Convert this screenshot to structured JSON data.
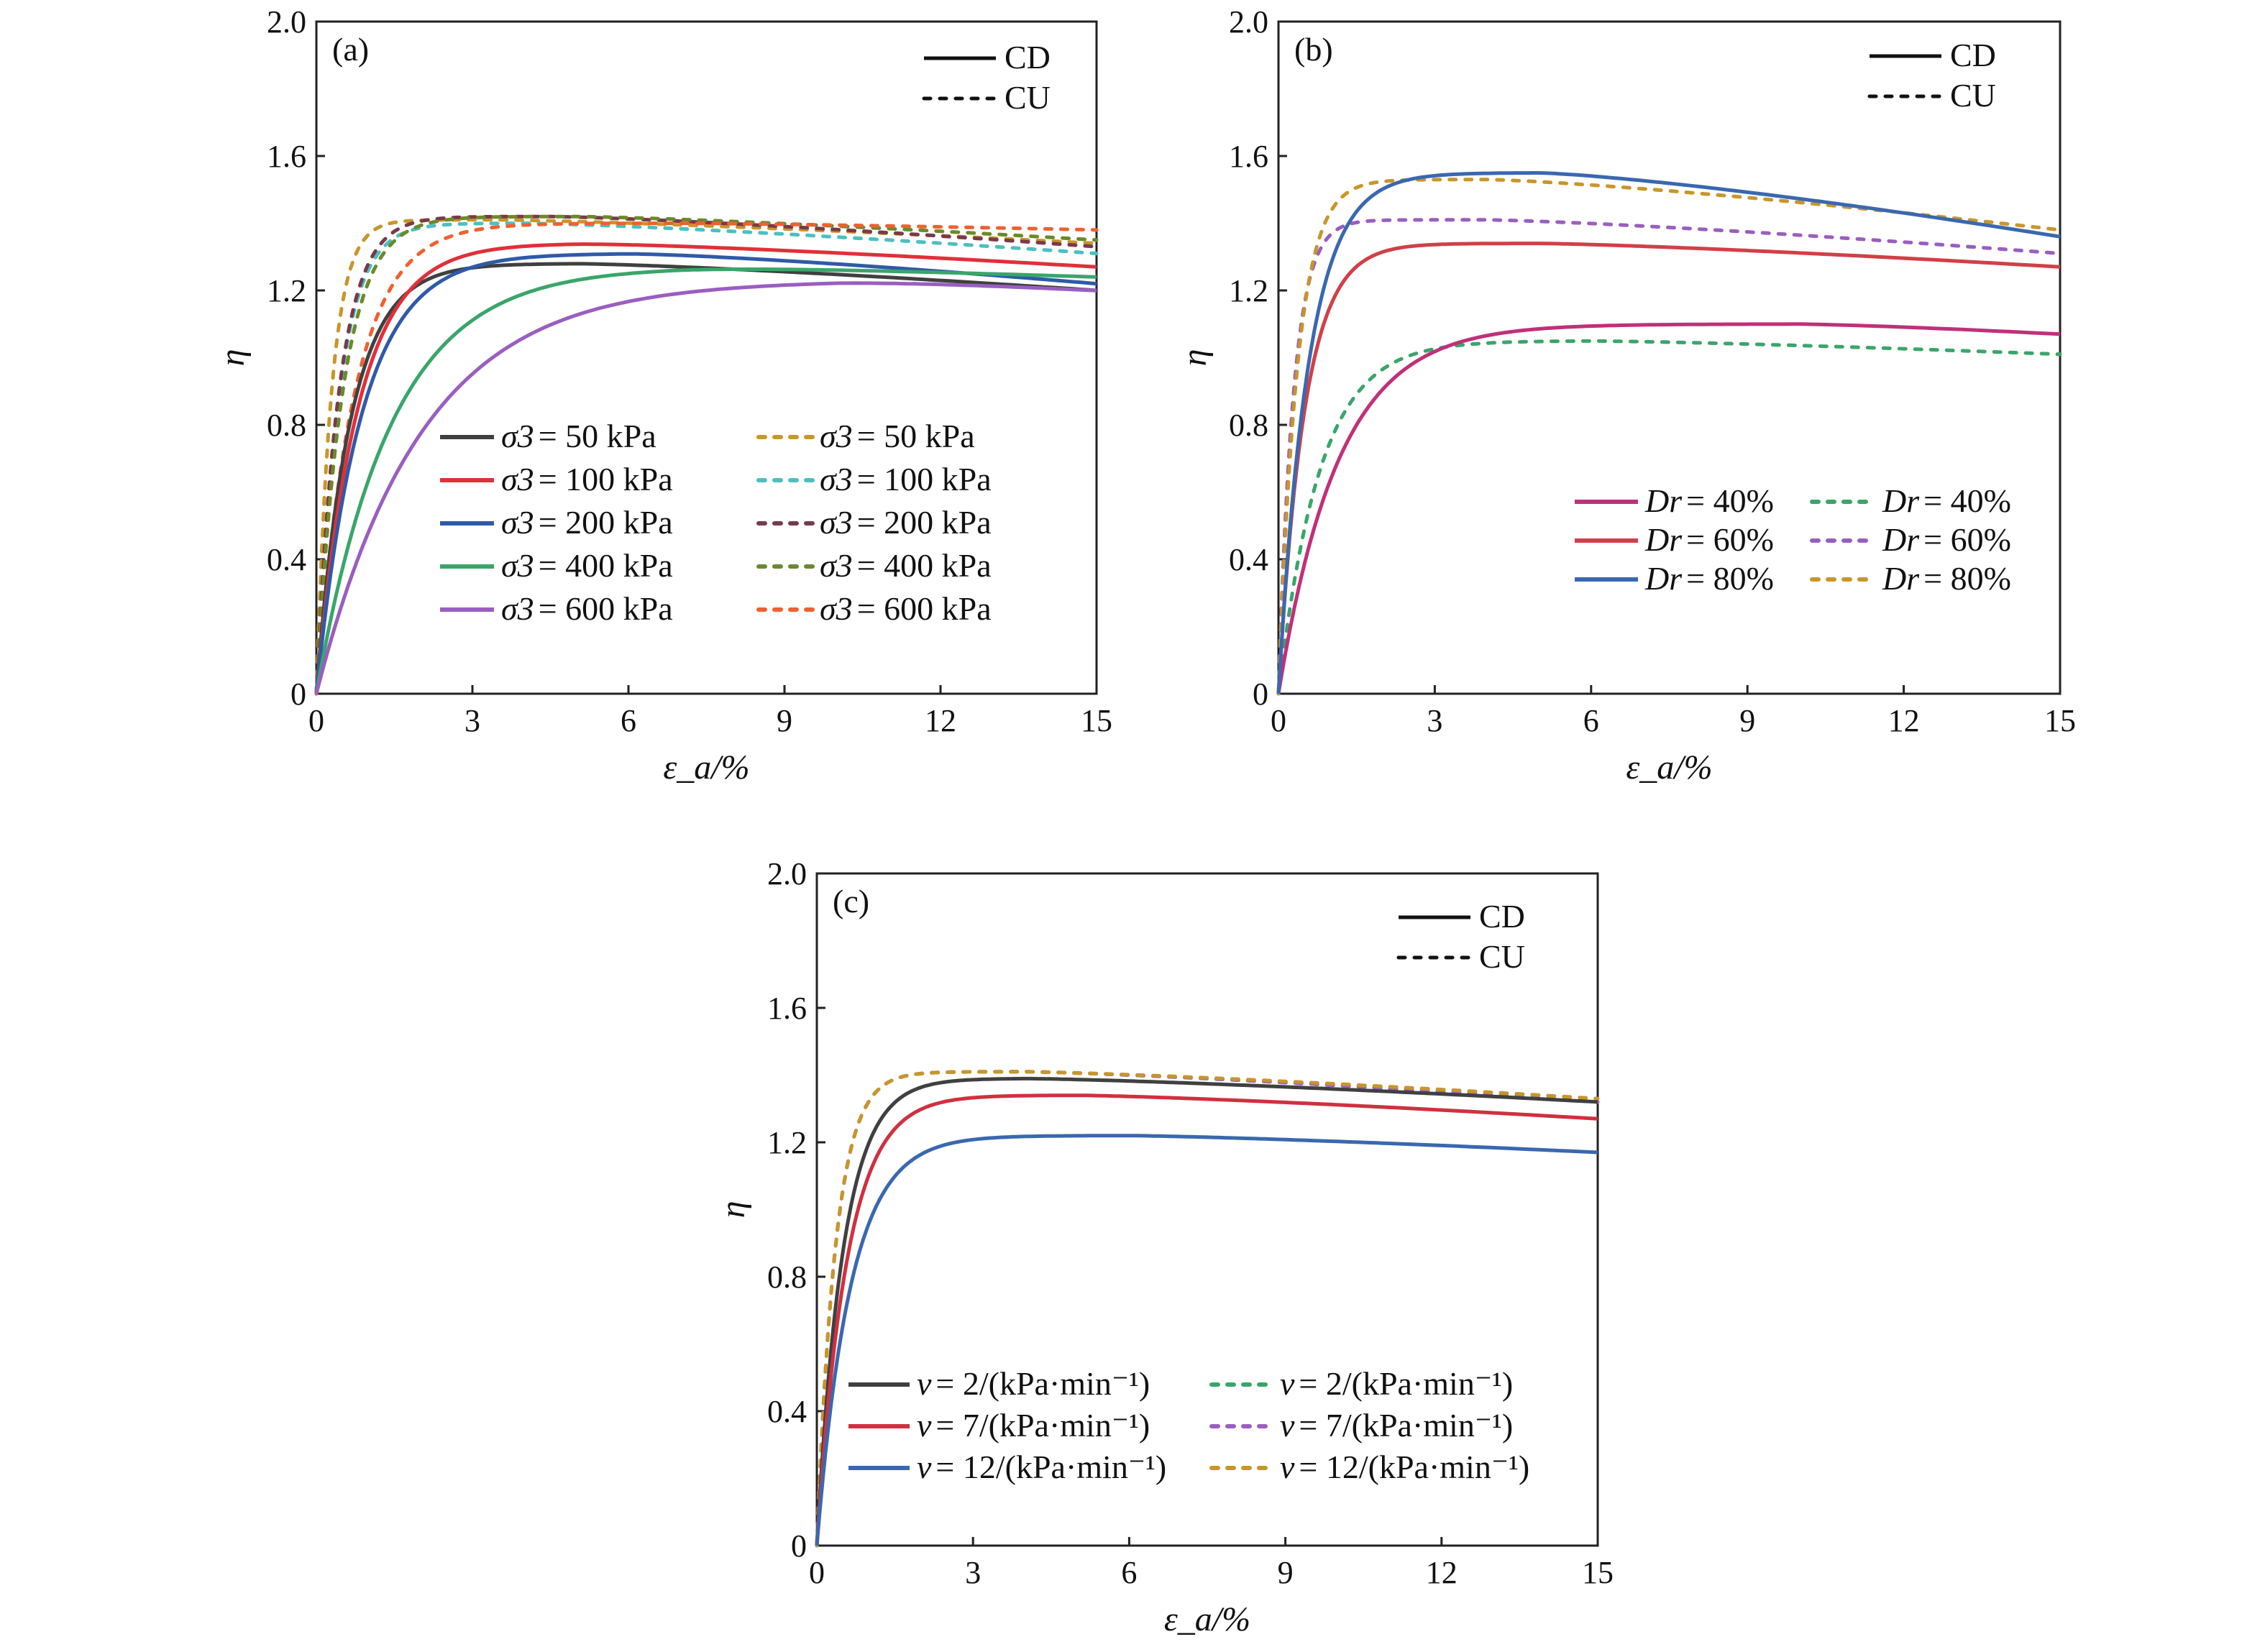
{
  "chart_data": [
    {
      "panel": "(a)",
      "type": "line",
      "xlabel": "ε_a/%",
      "ylabel": "η",
      "xlim": [
        0,
        15
      ],
      "ylim": [
        0,
        2.0
      ],
      "xticks": [
        "0",
        "3",
        "6",
        "9",
        "12",
        "15"
      ],
      "yticks": [
        "0",
        "0.4",
        "0.8",
        "1.2",
        "1.6",
        "2.0"
      ],
      "style_legend": [
        {
          "label": "CD",
          "dash": "solid"
        },
        {
          "label": "CU",
          "dash": "dotted"
        }
      ],
      "legend_prefix": "σ3",
      "series": [
        {
          "name": "= 50 kPa",
          "test": "CD",
          "color": "#404040",
          "peak": 1.28,
          "peakX": 5.0,
          "final": 1.2,
          "x50": 0.45
        },
        {
          "name": "= 100 kPa",
          "test": "CD",
          "color": "#e0303a",
          "peak": 1.34,
          "peakX": 5.0,
          "final": 1.27,
          "x50": 0.55
        },
        {
          "name": "= 200 kPa",
          "test": "CD",
          "color": "#2f5aa8",
          "peak": 1.31,
          "peakX": 6.0,
          "final": 1.22,
          "x50": 0.6
        },
        {
          "name": "= 400 kPa",
          "test": "CD",
          "color": "#3aa56a",
          "peak": 1.27,
          "peakX": 7.0,
          "final": 1.24,
          "x50": 1.0
        },
        {
          "name": "= 600 kPa",
          "test": "CD",
          "color": "#9a5ec0",
          "peak": 1.23,
          "peakX": 10.0,
          "final": 1.2,
          "x50": 1.4
        },
        {
          "name": "= 50 kPa",
          "test": "CU",
          "color": "#c8962a",
          "peak": 1.41,
          "peakX": 3.5,
          "final": 1.34,
          "x50": 0.2
        },
        {
          "name": "= 100 kPa",
          "test": "CU",
          "color": "#4cc0c0",
          "peak": 1.4,
          "peakX": 4.0,
          "final": 1.31,
          "x50": 0.3
        },
        {
          "name": "= 200 kPa",
          "test": "CU",
          "color": "#7a3a4a",
          "peak": 1.42,
          "peakX": 4.5,
          "final": 1.33,
          "x50": 0.3
        },
        {
          "name": "= 400 kPa",
          "test": "CU",
          "color": "#6a8a2a",
          "peak": 1.42,
          "peakX": 5.0,
          "final": 1.35,
          "x50": 0.35
        },
        {
          "name": "= 600 kPa",
          "test": "CU",
          "color": "#f06030",
          "peak": 1.4,
          "peakX": 7.0,
          "final": 1.38,
          "x50": 0.5
        }
      ]
    },
    {
      "panel": "(b)",
      "type": "line",
      "xlabel": "ε_a/%",
      "ylabel": "η",
      "xlim": [
        0,
        15
      ],
      "ylim": [
        0,
        2.0
      ],
      "xticks": [
        "0",
        "3",
        "6",
        "9",
        "12",
        "15"
      ],
      "yticks": [
        "0",
        "0.4",
        "0.8",
        "1.2",
        "1.6",
        "2.0"
      ],
      "style_legend": [
        {
          "label": "CD",
          "dash": "solid"
        },
        {
          "label": "CU",
          "dash": "dotted"
        }
      ],
      "legend_prefix": "Dr",
      "series": [
        {
          "name": "= 40%",
          "test": "CD",
          "color": "#c0307a",
          "peak": 1.1,
          "peakX": 10.0,
          "final": 1.07,
          "x50": 0.8
        },
        {
          "name": "= 60%",
          "test": "CD",
          "color": "#d04048",
          "peak": 1.34,
          "peakX": 5.0,
          "final": 1.27,
          "x50": 0.35
        },
        {
          "name": "= 80%",
          "test": "CD",
          "color": "#3a68b0",
          "peak": 1.55,
          "peakX": 5.0,
          "final": 1.36,
          "x50": 0.4
        },
        {
          "name": "= 40%",
          "test": "CU",
          "color": "#3aa56a",
          "peak": 1.05,
          "peakX": 6.0,
          "final": 1.01,
          "x50": 0.55
        },
        {
          "name": "= 60%",
          "test": "CU",
          "color": "#9a5ec0",
          "peak": 1.41,
          "peakX": 4.0,
          "final": 1.31,
          "x50": 0.2
        },
        {
          "name": "= 80%",
          "test": "CU",
          "color": "#c8962a",
          "peak": 1.53,
          "peakX": 4.0,
          "final": 1.38,
          "x50": 0.25
        }
      ]
    },
    {
      "panel": "(c)",
      "type": "line",
      "xlabel": "ε_a/%",
      "ylabel": "η",
      "xlim": [
        0,
        15
      ],
      "ylim": [
        0,
        2.0
      ],
      "xticks": [
        "0",
        "3",
        "6",
        "9",
        "12",
        "15"
      ],
      "yticks": [
        "0",
        "0.4",
        "0.8",
        "1.2",
        "1.6",
        "2.0"
      ],
      "style_legend": [
        {
          "label": "CD",
          "dash": "solid"
        },
        {
          "label": "CU",
          "dash": "dotted"
        }
      ],
      "legend_prefix": "v",
      "series": [
        {
          "name": "= 2/(kPa·min⁻¹)",
          "test": "CD",
          "color": "#404040",
          "peak": 1.39,
          "peakX": 4.0,
          "final": 1.32,
          "x50": 0.35
        },
        {
          "name": "= 7/(kPa·min⁻¹)",
          "test": "CD",
          "color": "#d03040",
          "peak": 1.34,
          "peakX": 5.0,
          "final": 1.27,
          "x50": 0.4
        },
        {
          "name": "= 12/(kPa·min⁻¹)",
          "test": "CD",
          "color": "#3a68b0",
          "peak": 1.22,
          "peakX": 6.0,
          "final": 1.17,
          "x50": 0.45
        },
        {
          "name": "= 2/(kPa·min⁻¹)",
          "test": "CU",
          "color": "#3aa56a",
          "peak": 1.41,
          "peakX": 4.0,
          "final": 1.32,
          "x50": 0.25
        },
        {
          "name": "= 7/(kPa·min⁻¹)",
          "test": "CU",
          "color": "#9a5ec0",
          "peak": 1.41,
          "peakX": 4.0,
          "final": 1.32,
          "x50": 0.25
        },
        {
          "name": "= 12/(kPa·min⁻¹)",
          "test": "CU",
          "color": "#c8962a",
          "peak": 1.41,
          "peakX": 4.0,
          "final": 1.33,
          "x50": 0.25
        }
      ]
    }
  ]
}
